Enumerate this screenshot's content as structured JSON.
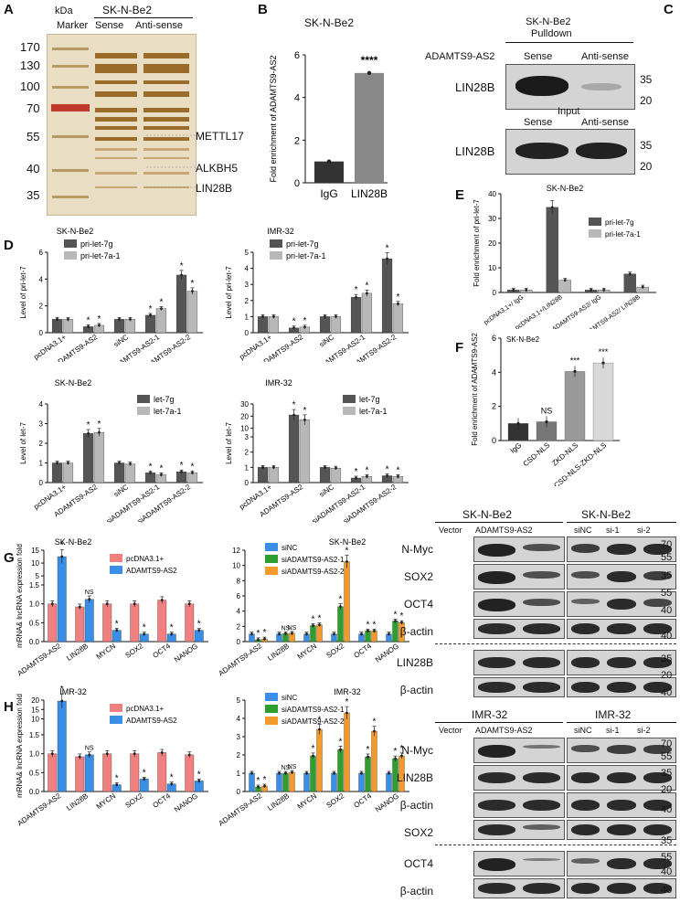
{
  "panelA": {
    "label": "A",
    "unit": "kDa",
    "title": "SK-N-Be2",
    "lanes": [
      "Marker",
      "Sense",
      "Anti-sense"
    ],
    "markers": [
      "170",
      "130",
      "100",
      "70",
      "55",
      "40",
      "35"
    ],
    "proteins": [
      "METTL17",
      "ALKBH5",
      "LIN28B"
    ]
  },
  "panelB": {
    "label": "B",
    "title": "SK-N-Be2",
    "ylabel": "Fold enrichment of ADAMTS9-AS2",
    "sig": "****",
    "chart_data": {
      "type": "bar",
      "categories": [
        "IgG",
        "LIN28B"
      ],
      "values": [
        1.0,
        5.15
      ],
      "ylim": [
        0,
        6
      ],
      "yticks": [
        0,
        2,
        4,
        6
      ],
      "colors": [
        "#333333",
        "#888888"
      ]
    }
  },
  "panelC": {
    "label": "C",
    "title": "SK-N-Be2",
    "subtitle": "Pulldown",
    "probe": "ADAMTS9-AS2",
    "lanes": [
      "Sense",
      "Anti-sense"
    ],
    "row1": "LIN28B",
    "input": "Input",
    "row2": "LIN28B",
    "mw1": [
      "35",
      "20"
    ],
    "mw2": [
      "35",
      "20"
    ]
  },
  "panelD": {
    "label": "D",
    "charts": [
      {
        "type": "bar",
        "title": "SK-N-Be2",
        "ylabel": "Level of pri-let-7",
        "ylim": [
          0,
          6
        ],
        "yticks": [
          "0",
          "2",
          "4",
          "6"
        ],
        "categories": [
          "pcDNA3.1+",
          "ADAMTS9-AS2",
          "siNC",
          "siADAMTS9-AS2-1",
          "siADAMTS9-AS2-2"
        ],
        "series": [
          {
            "name": "pri-let-7g",
            "values": [
              1.0,
              0.45,
              1.0,
              1.3,
              4.3
            ]
          },
          {
            "name": "pri-let-7a-1",
            "values": [
              1.0,
              0.55,
              1.0,
              1.8,
              3.1
            ]
          }
        ],
        "stars": [
          [
            "",
            ""
          ],
          [
            "*",
            "*"
          ],
          [
            "",
            ""
          ],
          [
            "*",
            "*"
          ],
          [
            "*",
            "*"
          ]
        ]
      },
      {
        "type": "bar",
        "title": "IMR-32",
        "ylabel": "Level of pri-let-7",
        "ylim": [
          0,
          5
        ],
        "yticks": [
          "0",
          "1",
          "2",
          "3",
          "4",
          "5"
        ],
        "categories": [
          "pcDNA3.1+",
          "ADAMTS9-AS2",
          "siNC",
          "siADAMTS9-AS2-1",
          "siADAMTS9-AS2-2"
        ],
        "series": [
          {
            "name": "pri-let-7g",
            "values": [
              1.0,
              0.3,
              1.0,
              2.2,
              4.6
            ]
          },
          {
            "name": "pri-let-7a-1",
            "values": [
              1.0,
              0.35,
              1.0,
              2.45,
              1.8
            ]
          }
        ],
        "stars": [
          [
            "",
            ""
          ],
          [
            "*",
            "*"
          ],
          [
            "",
            ""
          ],
          [
            "*",
            "*"
          ],
          [
            "*",
            "*"
          ]
        ]
      },
      {
        "type": "bar",
        "title": "SK-N-Be2",
        "ylabel": "Level of let-7",
        "ylim": [
          0,
          4
        ],
        "yticks": [
          "0",
          "1",
          "2",
          "3",
          "4"
        ],
        "categories": [
          "pcDNA3.1+",
          "ADAMTS9-AS2",
          "siNC",
          "siADAMTS9-AS2-1",
          "siADAMTS9-AS2-2"
        ],
        "series": [
          {
            "name": "let-7g",
            "values": [
              1.0,
              2.5,
              1.0,
              0.5,
              0.55
            ]
          },
          {
            "name": "let-7a-1",
            "values": [
              1.0,
              2.55,
              0.95,
              0.4,
              0.5
            ]
          }
        ],
        "stars": [
          [
            "",
            ""
          ],
          [
            "*",
            "*"
          ],
          [
            "",
            ""
          ],
          [
            "*",
            "*"
          ],
          [
            "*",
            "*"
          ]
        ]
      },
      {
        "type": "bar",
        "title": "IMR-32",
        "ylabel": "Level of let-7",
        "ylim": [
          0,
          30
        ],
        "yticks": [
          "0",
          "1",
          "2",
          "3",
          "10",
          "20",
          "30"
        ],
        "categories": [
          "pcDNA3.1+",
          "ADAMTS9-AS2",
          "siNC",
          "siADAMTS9-AS2-1",
          "siADAMTS9-AS2-2"
        ],
        "series": [
          {
            "name": "let-7g",
            "values": [
              1.0,
              21,
              1.0,
              0.3,
              0.45
            ]
          },
          {
            "name": "let-7a-1",
            "values": [
              1.0,
              17,
              0.95,
              0.4,
              0.4
            ]
          }
        ],
        "stars": [
          [
            "",
            ""
          ],
          [
            "*",
            "*"
          ],
          [
            "",
            ""
          ],
          [
            "*",
            "*"
          ],
          [
            "*",
            "*"
          ]
        ]
      }
    ]
  },
  "panelE": {
    "label": "E",
    "title": "SK-N-Be2",
    "ylabel": "Fold enrichment of pri-let-7",
    "chart_data": {
      "type": "bar",
      "ylim": [
        0,
        40
      ],
      "yticks": [
        "0",
        "10",
        "20",
        "30",
        "40"
      ],
      "categories": [
        "pcDNA3.1+/ IgG",
        "pcDNA3.1+/LIN28B",
        "ADAMTS9-AS2/ IgG",
        "ADAMTS9-AS2/ LIN28B"
      ],
      "series": [
        {
          "name": "pri-let-7g",
          "values": [
            1.0,
            34.5,
            1.0,
            7.5
          ]
        },
        {
          "name": "pri-let-7a-1",
          "values": [
            1.0,
            5.0,
            1.0,
            2.2
          ]
        }
      ]
    }
  },
  "panelF": {
    "label": "F",
    "title": "SK-N-Be2",
    "ylabel": "Fold enrichment of ADAMTS9-AS2",
    "chart_data": {
      "type": "bar",
      "ylim": [
        0,
        6
      ],
      "yticks": [
        "0",
        "2",
        "4",
        "6"
      ],
      "categories": [
        "IgG",
        "CSD-NLS",
        "ZKD-NLS",
        "CSD-NLS-ZKD-NLS"
      ],
      "values": [
        1.0,
        1.1,
        4.05,
        4.55
      ],
      "colors": [
        "#333333",
        "#777777",
        "#999999",
        "#d8d8d8"
      ],
      "stars": [
        "",
        "NS",
        "***",
        "***"
      ]
    }
  },
  "panelG": {
    "label": "G",
    "charts": [
      {
        "type": "bar",
        "title": "SK-N-Be2",
        "ylabel": "mRNA& lncRNA expression fold",
        "categories": [
          "ADAMTS9-AS2",
          "LIN28B",
          "MYCN",
          "SOX2",
          "OCT4",
          "NANOG"
        ],
        "series": [
          {
            "name": "pcDNA3.1+",
            "color": "#f08080",
            "values": [
              1.0,
              0.92,
              1.0,
              1.0,
              1.1,
              1.0
            ]
          },
          {
            "name": "ADAMTS9-AS2",
            "color": "#3a8ee6",
            "values": [
              12.5,
              1.12,
              0.3,
              0.2,
              0.2,
              0.3
            ]
          }
        ],
        "stars": [
          "*",
          "NS",
          "*",
          "*",
          "*",
          "*"
        ],
        "yticks": [
          "0.0",
          "0.5",
          "1.0",
          "1.5",
          "5",
          "10",
          "15"
        ]
      },
      {
        "type": "bar",
        "title": "SK-N-Be2",
        "categories": [
          "ADAMTS9-AS2",
          "LIN28B",
          "MYCN",
          "SOX2",
          "OCT4",
          "NANOG"
        ],
        "series": [
          {
            "name": "siNC",
            "color": "#3a8ee6",
            "values": [
              1.0,
              1.0,
              1.0,
              1.0,
              1.0,
              1.0
            ]
          },
          {
            "name": "siADAMTS9-AS2-1",
            "color": "#2e9e2e",
            "values": [
              0.25,
              1.05,
              2.1,
              4.6,
              1.4,
              2.7
            ]
          },
          {
            "name": "siADAMTS9-AS2-2",
            "color": "#f39a2a",
            "values": [
              0.35,
              1.1,
              2.2,
              10.5,
              1.4,
              2.5
            ]
          }
        ],
        "stars": [
          [
            "",
            "*",
            "*"
          ],
          [
            "",
            "NS",
            "NS"
          ],
          [
            "",
            "*",
            "*"
          ],
          [
            "",
            "*",
            "*"
          ],
          [
            "",
            "*",
            "*"
          ],
          [
            "",
            "*",
            "*"
          ]
        ],
        "yticks": [
          "0",
          "2",
          "4",
          "6",
          "8",
          "10",
          "12"
        ]
      }
    ]
  },
  "panelH": {
    "label": "H",
    "charts": [
      {
        "type": "bar",
        "title": "IMR-32",
        "ylabel": "mRNA& lncRNA expression fold",
        "categories": [
          "ADAMTS9-AS2",
          "LIN28B",
          "MYCN",
          "SOX2",
          "OCT4",
          "NANOG"
        ],
        "series": [
          {
            "name": "pcDNA3.1+",
            "color": "#f08080",
            "values": [
              1.0,
              0.92,
              1.0,
              1.0,
              1.03,
              0.97
            ]
          },
          {
            "name": "ADAMTS9-AS2",
            "color": "#3a8ee6",
            "values": [
              19.5,
              0.97,
              0.18,
              0.33,
              0.2,
              0.28
            ]
          }
        ],
        "stars": [
          "*",
          "NS",
          "*",
          "*",
          "*",
          "*"
        ],
        "yticks": [
          "0.0",
          "0.5",
          "1.0",
          "1.5",
          "10",
          "15",
          "20"
        ]
      },
      {
        "type": "bar",
        "title": "IMR-32",
        "categories": [
          "ADAMTS9-AS2",
          "LIN28B",
          "MYCN",
          "SOX2",
          "OCT4",
          "NANOG"
        ],
        "series": [
          {
            "name": "siNC",
            "color": "#3a8ee6",
            "values": [
              1.0,
              1.0,
              1.0,
              1.0,
              1.0,
              1.0
            ]
          },
          {
            "name": "siADAMTS9-AS2-1",
            "color": "#2e9e2e",
            "values": [
              0.25,
              1.0,
              1.95,
              2.3,
              1.9,
              1.8
            ]
          },
          {
            "name": "siADAMTS9-AS2-2",
            "color": "#f39a2a",
            "values": [
              0.3,
              1.05,
              3.4,
              4.3,
              3.3,
              1.95
            ]
          }
        ],
        "stars": [
          [
            "",
            "*",
            "*"
          ],
          [
            "",
            "NS",
            "NS"
          ],
          [
            "",
            "*",
            "*"
          ],
          [
            "",
            "*",
            "*"
          ],
          [
            "",
            "*",
            "*"
          ],
          [
            "",
            "*",
            "*"
          ]
        ],
        "yticks": [
          "0",
          "1",
          "2",
          "3",
          "4",
          "5"
        ]
      }
    ]
  },
  "blots": {
    "top_left": {
      "title": "SK-N-Be2",
      "lanes": [
        "Vector",
        "ADAMTS9-AS2"
      ]
    },
    "top_right": {
      "title": "SK-N-Be2",
      "lanes": [
        "siNC",
        "si-1",
        "si-2"
      ]
    },
    "top_rows": [
      "N-Myc",
      "SOX2",
      "OCT4",
      "β-actin",
      "LIN28B",
      "β-actin"
    ],
    "top_mw": [
      "70",
      "55",
      "35",
      "55",
      "40",
      "40",
      "35",
      "20",
      "40"
    ],
    "bot_left": {
      "title": "IMR-32",
      "lanes": [
        "Vector",
        "ADAMTS9-AS2"
      ]
    },
    "bot_right": {
      "title": "IMR-32",
      "lanes": [
        "siNC",
        "si-1",
        "si-2"
      ]
    },
    "bot_rows": [
      "N-Myc",
      "LIN28B",
      "β-actin",
      "SOX2",
      "OCT4",
      "β-actin"
    ],
    "bot_mw": [
      "70",
      "55",
      "35",
      "20",
      "40",
      "35",
      "55",
      "40",
      "40"
    ]
  }
}
